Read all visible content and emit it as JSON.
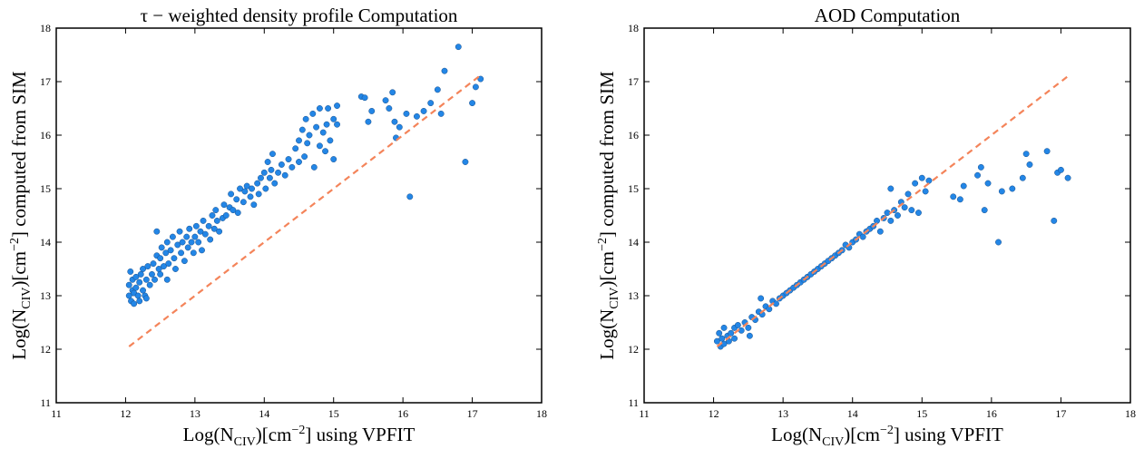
{
  "chart_data": [
    {
      "type": "scatter",
      "title": "τ − weighted density profile Computation",
      "xlabel": [
        "Log(N",
        "CIV",
        ")[cm",
        "−2",
        "] using VPFIT"
      ],
      "ylabel": [
        "Log(N",
        "CIV",
        ")[cm",
        "−2",
        "] computed from SIM"
      ],
      "xlim": [
        11,
        18
      ],
      "ylim": [
        11,
        18
      ],
      "xticks": [
        11,
        12,
        13,
        14,
        15,
        16,
        17,
        18
      ],
      "yticks": [
        11,
        12,
        13,
        14,
        15,
        16,
        17,
        18
      ],
      "series": [
        {
          "color": "#2386e6",
          "x": [
            12.05,
            12.05,
            12.07,
            12.08,
            12.1,
            12.1,
            12.12,
            12.12,
            12.15,
            12.15,
            12.18,
            12.2,
            12.2,
            12.22,
            12.25,
            12.25,
            12.28,
            12.3,
            12.3,
            12.32,
            12.35,
            12.38,
            12.4,
            12.42,
            12.45,
            12.45,
            12.48,
            12.5,
            12.5,
            12.52,
            12.55,
            12.58,
            12.6,
            12.6,
            12.62,
            12.65,
            12.68,
            12.7,
            12.72,
            12.75,
            12.78,
            12.8,
            12.82,
            12.85,
            12.88,
            12.9,
            12.92,
            12.95,
            12.98,
            13.0,
            13.02,
            13.05,
            13.08,
            13.1,
            13.12,
            13.15,
            13.2,
            13.22,
            13.25,
            13.28,
            13.3,
            13.32,
            13.35,
            13.4,
            13.42,
            13.45,
            13.5,
            13.52,
            13.55,
            13.6,
            13.62,
            13.65,
            13.7,
            13.72,
            13.75,
            13.8,
            13.82,
            13.85,
            13.9,
            13.92,
            13.95,
            14.0,
            14.02,
            14.05,
            14.08,
            14.1,
            14.12,
            14.15,
            14.2,
            14.25,
            14.3,
            14.35,
            14.4,
            14.45,
            14.5,
            14.5,
            14.55,
            14.58,
            14.6,
            14.62,
            14.65,
            14.7,
            14.72,
            14.75,
            14.8,
            14.8,
            14.85,
            14.88,
            14.9,
            14.92,
            14.95,
            15.0,
            15.0,
            15.05,
            15.05,
            15.4,
            15.45,
            15.5,
            15.55,
            15.75,
            15.8,
            15.85,
            15.88,
            15.9,
            15.95,
            16.05,
            16.1,
            16.2,
            16.3,
            16.4,
            16.5,
            16.55,
            16.6,
            16.8,
            16.9,
            17.0,
            17.05,
            17.12
          ],
          "y": [
            13.0,
            13.2,
            13.45,
            12.9,
            13.1,
            13.3,
            13.05,
            12.85,
            13.35,
            13.15,
            13.0,
            13.25,
            12.9,
            13.4,
            13.1,
            13.5,
            13.0,
            13.3,
            12.95,
            13.55,
            13.2,
            13.4,
            13.6,
            13.3,
            14.2,
            13.75,
            13.5,
            13.4,
            13.7,
            13.9,
            13.55,
            13.8,
            13.3,
            14.0,
            13.6,
            13.85,
            14.1,
            13.7,
            13.5,
            13.95,
            14.2,
            13.8,
            14.0,
            13.65,
            14.1,
            13.9,
            14.25,
            14.0,
            13.8,
            14.1,
            14.3,
            14.0,
            14.2,
            13.85,
            14.4,
            14.15,
            14.3,
            14.05,
            14.5,
            14.25,
            14.6,
            14.4,
            14.2,
            14.45,
            14.7,
            14.5,
            14.65,
            14.9,
            14.6,
            14.8,
            14.55,
            15.0,
            14.75,
            14.95,
            15.05,
            14.85,
            15.0,
            14.7,
            15.1,
            14.9,
            15.2,
            15.3,
            15.0,
            15.5,
            15.2,
            15.35,
            15.65,
            15.1,
            15.3,
            15.45,
            15.25,
            15.55,
            15.4,
            15.75,
            15.5,
            15.9,
            16.1,
            15.6,
            16.3,
            15.85,
            16.0,
            16.4,
            15.4,
            16.15,
            15.8,
            16.5,
            16.05,
            15.7,
            16.2,
            16.5,
            15.9,
            16.3,
            15.55,
            16.55,
            16.2,
            16.72,
            16.7,
            16.25,
            16.45,
            16.65,
            16.5,
            16.8,
            16.25,
            15.95,
            16.15,
            16.4,
            14.85,
            16.35,
            16.45,
            16.6,
            16.85,
            16.4,
            17.2,
            17.65,
            15.5,
            16.6,
            16.9,
            17.05
          ]
        },
        {
          "color": "#f4845a",
          "style": "dashed",
          "x": [
            12.05,
            17.1
          ],
          "y": [
            12.05,
            17.1
          ]
        }
      ]
    },
    {
      "type": "scatter",
      "title": "AOD Computation",
      "xlabel": [
        "Log(N",
        "CIV",
        ")[cm",
        "−2",
        "] using VPFIT"
      ],
      "ylabel": [
        "Log(N",
        "CIV",
        ")[cm",
        "−2",
        "] computed from SIM"
      ],
      "xlim": [
        11,
        18
      ],
      "ylim": [
        11,
        18
      ],
      "xticks": [
        11,
        12,
        13,
        14,
        15,
        16,
        17,
        18
      ],
      "yticks": [
        11,
        12,
        13,
        14,
        15,
        16,
        17,
        18
      ],
      "series": [
        {
          "color": "#2386e6",
          "x": [
            12.05,
            12.08,
            12.1,
            12.12,
            12.15,
            12.15,
            12.2,
            12.22,
            12.25,
            12.3,
            12.3,
            12.35,
            12.4,
            12.45,
            12.5,
            12.52,
            12.55,
            12.6,
            12.65,
            12.68,
            12.7,
            12.75,
            12.8,
            12.85,
            12.9,
            12.95,
            13.0,
            13.05,
            13.1,
            13.15,
            13.2,
            13.25,
            13.3,
            13.35,
            13.4,
            13.45,
            13.5,
            13.55,
            13.6,
            13.65,
            13.7,
            13.75,
            13.8,
            13.85,
            13.9,
            13.95,
            14.0,
            14.05,
            14.1,
            14.15,
            14.2,
            14.25,
            14.3,
            14.35,
            14.4,
            14.45,
            14.5,
            14.55,
            14.55,
            14.6,
            14.65,
            14.7,
            14.75,
            14.8,
            14.85,
            14.9,
            14.95,
            15.0,
            15.05,
            15.1,
            15.45,
            15.55,
            15.6,
            15.8,
            15.85,
            15.9,
            15.95,
            16.1,
            16.15,
            16.3,
            16.45,
            16.5,
            16.55,
            16.8,
            16.9,
            16.95,
            17.0,
            17.1
          ],
          "y": [
            12.15,
            12.3,
            12.05,
            12.2,
            12.1,
            12.4,
            12.25,
            12.15,
            12.3,
            12.4,
            12.2,
            12.45,
            12.35,
            12.5,
            12.4,
            12.25,
            12.6,
            12.55,
            12.7,
            12.95,
            12.65,
            12.8,
            12.75,
            12.9,
            12.85,
            12.95,
            13.0,
            13.05,
            13.1,
            13.15,
            13.2,
            13.25,
            13.3,
            13.35,
            13.4,
            13.45,
            13.5,
            13.55,
            13.6,
            13.65,
            13.7,
            13.75,
            13.8,
            13.85,
            13.95,
            13.9,
            14.0,
            14.05,
            14.15,
            14.1,
            14.2,
            14.25,
            14.3,
            14.4,
            14.2,
            14.45,
            14.55,
            14.4,
            15.0,
            14.6,
            14.5,
            14.75,
            14.65,
            14.9,
            14.6,
            15.1,
            14.55,
            15.2,
            14.95,
            15.15,
            14.85,
            14.8,
            15.05,
            15.25,
            15.4,
            14.6,
            15.1,
            14.0,
            14.95,
            15.0,
            15.2,
            15.65,
            15.45,
            15.7,
            14.4,
            15.3,
            15.35,
            15.2
          ]
        },
        {
          "color": "#f4845a",
          "style": "dashed",
          "x": [
            12.05,
            17.1
          ],
          "y": [
            12.05,
            17.1
          ]
        }
      ]
    }
  ]
}
